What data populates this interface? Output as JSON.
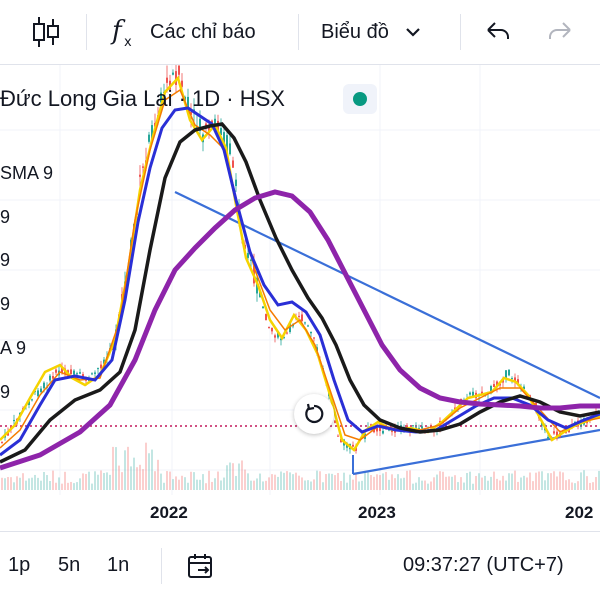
{
  "toolbar": {
    "indicators_label": "Các chỉ báo",
    "chart_type_label": "Biểu đồ"
  },
  "symbol": {
    "title": "Đức Long Gia Lai · 1D · HSX"
  },
  "legend": [
    "SMA 9",
    "9",
    "9",
    "9",
    "A 9",
    "9"
  ],
  "x_axis": {
    "labels": [
      "2022",
      "2023",
      "202"
    ]
  },
  "bottom": {
    "intervals": [
      "1p",
      "5n",
      "1n"
    ],
    "time": "09:37:27 (UTC+7)"
  },
  "colors": {
    "purple_ma": "#8e24aa",
    "black_ma": "#1a1a1a",
    "blue_ma": "#2a2fd6",
    "yellow_ma": "#f5d300",
    "trendline": "#3a6fd8",
    "status_green": "#089981"
  }
}
